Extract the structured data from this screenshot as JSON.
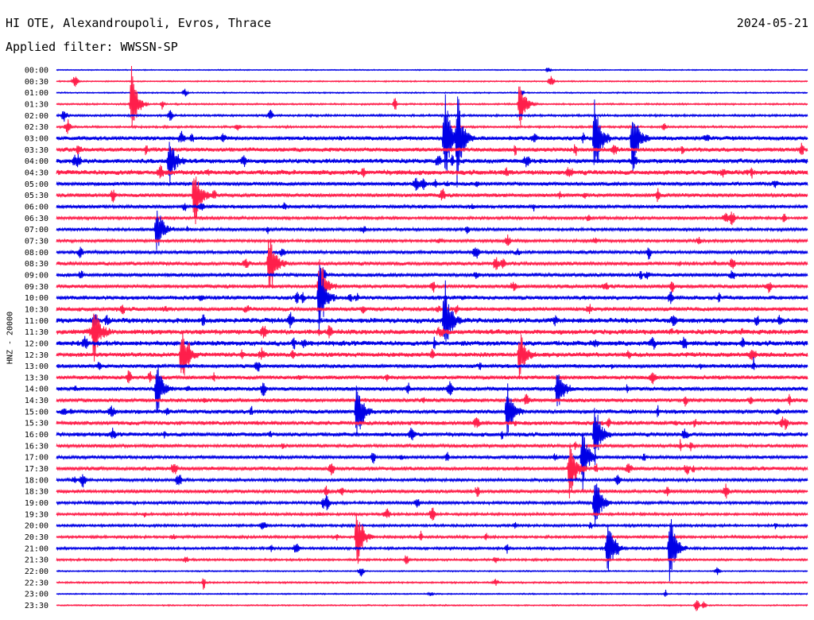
{
  "header": {
    "title": "HI OTE, Alexandroupoli, Evros, Thrace",
    "date": "2024-05-21",
    "filter": "Applied filter: WWSSN-SP"
  },
  "chart_data": {
    "type": "line",
    "ylabel": "HNZ - 20000",
    "colors": [
      "#0000e6",
      "#ff1f4b"
    ],
    "rows": [
      {
        "time": "00:00",
        "level": 0.12
      },
      {
        "time": "00:30",
        "level": 0.15
      },
      {
        "time": "01:00",
        "level": 0.15
      },
      {
        "time": "01:30",
        "level": 0.2
      },
      {
        "time": "02:00",
        "level": 0.25
      },
      {
        "time": "02:30",
        "level": 0.25
      },
      {
        "time": "03:00",
        "level": 0.5
      },
      {
        "time": "03:30",
        "level": 0.5
      },
      {
        "time": "04:00",
        "level": 0.55
      },
      {
        "time": "04:30",
        "level": 0.6
      },
      {
        "time": "05:00",
        "level": 0.45
      },
      {
        "time": "05:30",
        "level": 0.45
      },
      {
        "time": "06:00",
        "level": 0.4
      },
      {
        "time": "06:30",
        "level": 0.35
      },
      {
        "time": "07:00",
        "level": 0.35
      },
      {
        "time": "07:30",
        "level": 0.35
      },
      {
        "time": "08:00",
        "level": 0.4
      },
      {
        "time": "08:30",
        "level": 0.45
      },
      {
        "time": "09:00",
        "level": 0.45
      },
      {
        "time": "09:30",
        "level": 0.45
      },
      {
        "time": "10:00",
        "level": 0.5
      },
      {
        "time": "10:30",
        "level": 0.5
      },
      {
        "time": "11:00",
        "level": 0.6
      },
      {
        "time": "11:30",
        "level": 0.6
      },
      {
        "time": "12:00",
        "level": 0.6
      },
      {
        "time": "12:30",
        "level": 0.55
      },
      {
        "time": "13:00",
        "level": 0.45
      },
      {
        "time": "13:30",
        "level": 0.45
      },
      {
        "time": "14:00",
        "level": 0.45
      },
      {
        "time": "14:30",
        "level": 0.45
      },
      {
        "time": "15:00",
        "level": 0.5
      },
      {
        "time": "15:30",
        "level": 0.5
      },
      {
        "time": "16:00",
        "level": 0.5
      },
      {
        "time": "16:30",
        "level": 0.4
      },
      {
        "time": "17:00",
        "level": 0.4
      },
      {
        "time": "17:30",
        "level": 0.45
      },
      {
        "time": "18:00",
        "level": 0.35
      },
      {
        "time": "18:30",
        "level": 0.4
      },
      {
        "time": "19:00",
        "level": 0.35
      },
      {
        "time": "19:30",
        "level": 0.3
      },
      {
        "time": "20:00",
        "level": 0.3
      },
      {
        "time": "20:30",
        "level": 0.3
      },
      {
        "time": "21:00",
        "level": 0.3
      },
      {
        "time": "21:30",
        "level": 0.25
      },
      {
        "time": "22:00",
        "level": 0.15
      },
      {
        "time": "22:30",
        "level": 0.2
      },
      {
        "time": "23:00",
        "level": 0.15
      },
      {
        "time": "23:30",
        "level": 0.15
      }
    ],
    "events": [
      {
        "time": "01:30",
        "minute": 6,
        "amplitude": 1.0
      },
      {
        "time": "01:30",
        "minute": 37,
        "amplitude": 0.7
      },
      {
        "time": "03:00",
        "minute": 31,
        "amplitude": 1.4
      },
      {
        "time": "03:00",
        "minute": 32,
        "amplitude": 1.3
      },
      {
        "time": "03:00",
        "minute": 43,
        "amplitude": 1.2
      },
      {
        "time": "03:00",
        "minute": 46,
        "amplitude": 1.0
      },
      {
        "time": "04:00",
        "minute": 9,
        "amplitude": 0.8
      },
      {
        "time": "05:30",
        "minute": 11,
        "amplitude": 1.0
      },
      {
        "time": "07:00",
        "minute": 8,
        "amplitude": 0.8
      },
      {
        "time": "08:30",
        "minute": 17,
        "amplitude": 1.0
      },
      {
        "time": "09:30",
        "minute": 21,
        "amplitude": 0.8
      },
      {
        "time": "10:00",
        "minute": 21,
        "amplitude": 1.1
      },
      {
        "time": "11:00",
        "minute": 31,
        "amplitude": 1.2
      },
      {
        "time": "11:30",
        "minute": 3,
        "amplitude": 0.8
      },
      {
        "time": "12:30",
        "minute": 10,
        "amplitude": 0.9
      },
      {
        "time": "12:30",
        "minute": 37,
        "amplitude": 0.7
      },
      {
        "time": "14:00",
        "minute": 8,
        "amplitude": 0.8
      },
      {
        "time": "14:00",
        "minute": 40,
        "amplitude": 0.7
      },
      {
        "time": "15:00",
        "minute": 24,
        "amplitude": 0.9
      },
      {
        "time": "15:00",
        "minute": 36,
        "amplitude": 0.8
      },
      {
        "time": "16:00",
        "minute": 43,
        "amplitude": 0.9
      },
      {
        "time": "17:00",
        "minute": 42,
        "amplitude": 1.0
      },
      {
        "time": "17:30",
        "minute": 41,
        "amplitude": 0.9
      },
      {
        "time": "19:00",
        "minute": 43,
        "amplitude": 0.9
      },
      {
        "time": "20:30",
        "minute": 24,
        "amplitude": 0.9
      },
      {
        "time": "21:00",
        "minute": 44,
        "amplitude": 0.9
      },
      {
        "time": "21:00",
        "minute": 49,
        "amplitude": 1.1
      }
    ]
  }
}
